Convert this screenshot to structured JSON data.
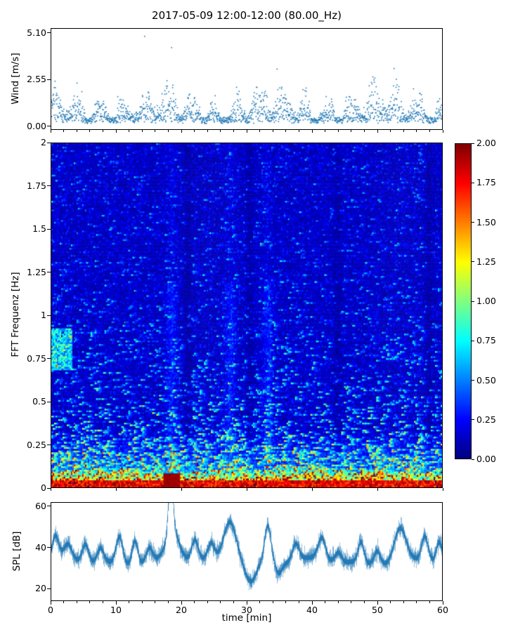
{
  "title": "2017-05-09 12:00-12:00 (80.00_Hz)",
  "colors": {
    "marker": "#1f77b4",
    "line": "#1f77b4",
    "background": "#ffffff",
    "text": "#000000"
  },
  "chart_data": [
    {
      "type": "scatter",
      "name": "wind-speed-vs-time",
      "ylabel": "Wind [m/s]",
      "xlim": [
        0,
        60
      ],
      "ylim": [
        -0.2,
        5.35
      ],
      "value_range": [
        0,
        5.1
      ],
      "yticks": [
        {
          "label": "5.10",
          "value": 5.1
        },
        {
          "label": "2.55",
          "value": 2.55
        },
        {
          "label": "0.00",
          "value": 0
        }
      ],
      "marker_color": "#1f77b4",
      "n_points": 1750,
      "seed": 42,
      "pattern": "gusty wind-speed scatter; dense band 0.3-2.5 m/s with quasi-periodic gust bursts every 3-4 min reaching 3.5-5.1 m/s and lulls near 0"
    },
    {
      "type": "heatmap",
      "name": "fft-spectrogram",
      "ylabel": "FFT Frequenz [Hz]",
      "xlim": [
        0,
        60
      ],
      "ylim": [
        0,
        2
      ],
      "clim": [
        0,
        2
      ],
      "colormap": "jet",
      "yticks": [
        {
          "label": "2",
          "value": 2
        },
        {
          "label": "1.75",
          "value": 1.75
        },
        {
          "label": "1.5",
          "value": 1.5
        },
        {
          "label": "1.25",
          "value": 1.25
        },
        {
          "label": "1",
          "value": 1
        },
        {
          "label": "0.75",
          "value": 0.75
        },
        {
          "label": "0.5",
          "value": 0.5
        },
        {
          "label": "0.25",
          "value": 0.25
        },
        {
          "label": "0",
          "value": 0
        }
      ],
      "colorbar_ticks": [
        {
          "label": "2.00",
          "value": 2
        },
        {
          "label": "1.75",
          "value": 1.75
        },
        {
          "label": "1.50",
          "value": 1.5
        },
        {
          "label": "1.25",
          "value": 1.25
        },
        {
          "label": "1.00",
          "value": 1
        },
        {
          "label": "0.75",
          "value": 0.75
        },
        {
          "label": "0.50",
          "value": 0.5
        },
        {
          "label": "0.25",
          "value": 0.25
        },
        {
          "label": "0.00",
          "value": 0
        }
      ],
      "seed": 7,
      "features": [
        {
          "desc": "continuous dark-red band",
          "freq": [
            0,
            0.04
          ],
          "value": 1.9
        },
        {
          "desc": "red-orange-yellow band",
          "freq": [
            0.04,
            0.12
          ],
          "value": 1.2
        },
        {
          "desc": "cyan-green horizontal streaks, densest below 0.3 Hz",
          "value": 0.7
        },
        {
          "desc": "dark-red blob",
          "time": [
            17.2,
            19.8
          ],
          "freq": [
            0,
            0.09
          ],
          "value": 2
        },
        {
          "desc": "yellow-green patch",
          "time": [
            0,
            3.2
          ],
          "freq": [
            0.68,
            0.92
          ],
          "value": 1.1
        },
        {
          "desc": "dark vertical lull columns",
          "times": [
            21,
            30.5,
            44,
            58
          ],
          "value": 0.1
        },
        {
          "desc": "background",
          "value": 0.2
        }
      ]
    },
    {
      "type": "line",
      "name": "spl-vs-time",
      "ylabel": "SPL [dB]",
      "xlabel": "time [min]",
      "xlim": [
        0,
        60
      ],
      "ylim": [
        14,
        62
      ],
      "yticks": [
        {
          "label": "60",
          "value": 60
        },
        {
          "label": "40",
          "value": 40
        },
        {
          "label": "20",
          "value": 20
        }
      ],
      "xticks": [
        {
          "label": "0",
          "value": 0
        },
        {
          "label": "10",
          "value": 10
        },
        {
          "label": "20",
          "value": 20
        },
        {
          "label": "30",
          "value": 30
        },
        {
          "label": "40",
          "value": 40
        },
        {
          "label": "50",
          "value": 50
        },
        {
          "label": "60",
          "value": 60
        }
      ],
      "line_color": "#1f77b4",
      "baseline_db": 33,
      "noise_band_db": 5,
      "seed": 99,
      "features": [
        {
          "t": 0.6,
          "v": 44,
          "w": 0.5
        },
        {
          "t": 2.5,
          "v": 40,
          "w": 0.6
        },
        {
          "t": 5.2,
          "v": 42,
          "w": 0.5
        },
        {
          "t": 7.5,
          "v": 40,
          "w": 0.5
        },
        {
          "t": 10.4,
          "v": 46,
          "w": 0.5
        },
        {
          "t": 12.8,
          "v": 45,
          "w": 0.45
        },
        {
          "t": 15.0,
          "v": 40,
          "w": 0.5
        },
        {
          "t": 18.3,
          "v": 59,
          "w": 0.35
        },
        {
          "t": 18.6,
          "v": 47,
          "w": 1.0
        },
        {
          "t": 22.0,
          "v": 43,
          "w": 0.5
        },
        {
          "t": 24.5,
          "v": 41,
          "w": 0.5
        },
        {
          "t": 27.4,
          "v": 54,
          "w": 1.0
        },
        {
          "t": 30.6,
          "v": 24,
          "w": 0.8
        },
        {
          "t": 33.2,
          "v": 51,
          "w": 0.5
        },
        {
          "t": 34.9,
          "v": 28,
          "w": 0.5
        },
        {
          "t": 37.5,
          "v": 41,
          "w": 0.5
        },
        {
          "t": 41.5,
          "v": 44,
          "w": 0.6
        },
        {
          "t": 44.0,
          "v": 38,
          "w": 0.5
        },
        {
          "t": 47.5,
          "v": 43,
          "w": 0.45
        },
        {
          "t": 50.0,
          "v": 40,
          "w": 0.5
        },
        {
          "t": 53.5,
          "v": 49,
          "w": 0.9
        },
        {
          "t": 57.3,
          "v": 45,
          "w": 0.5
        },
        {
          "t": 59.5,
          "v": 42,
          "w": 0.4
        }
      ]
    }
  ]
}
